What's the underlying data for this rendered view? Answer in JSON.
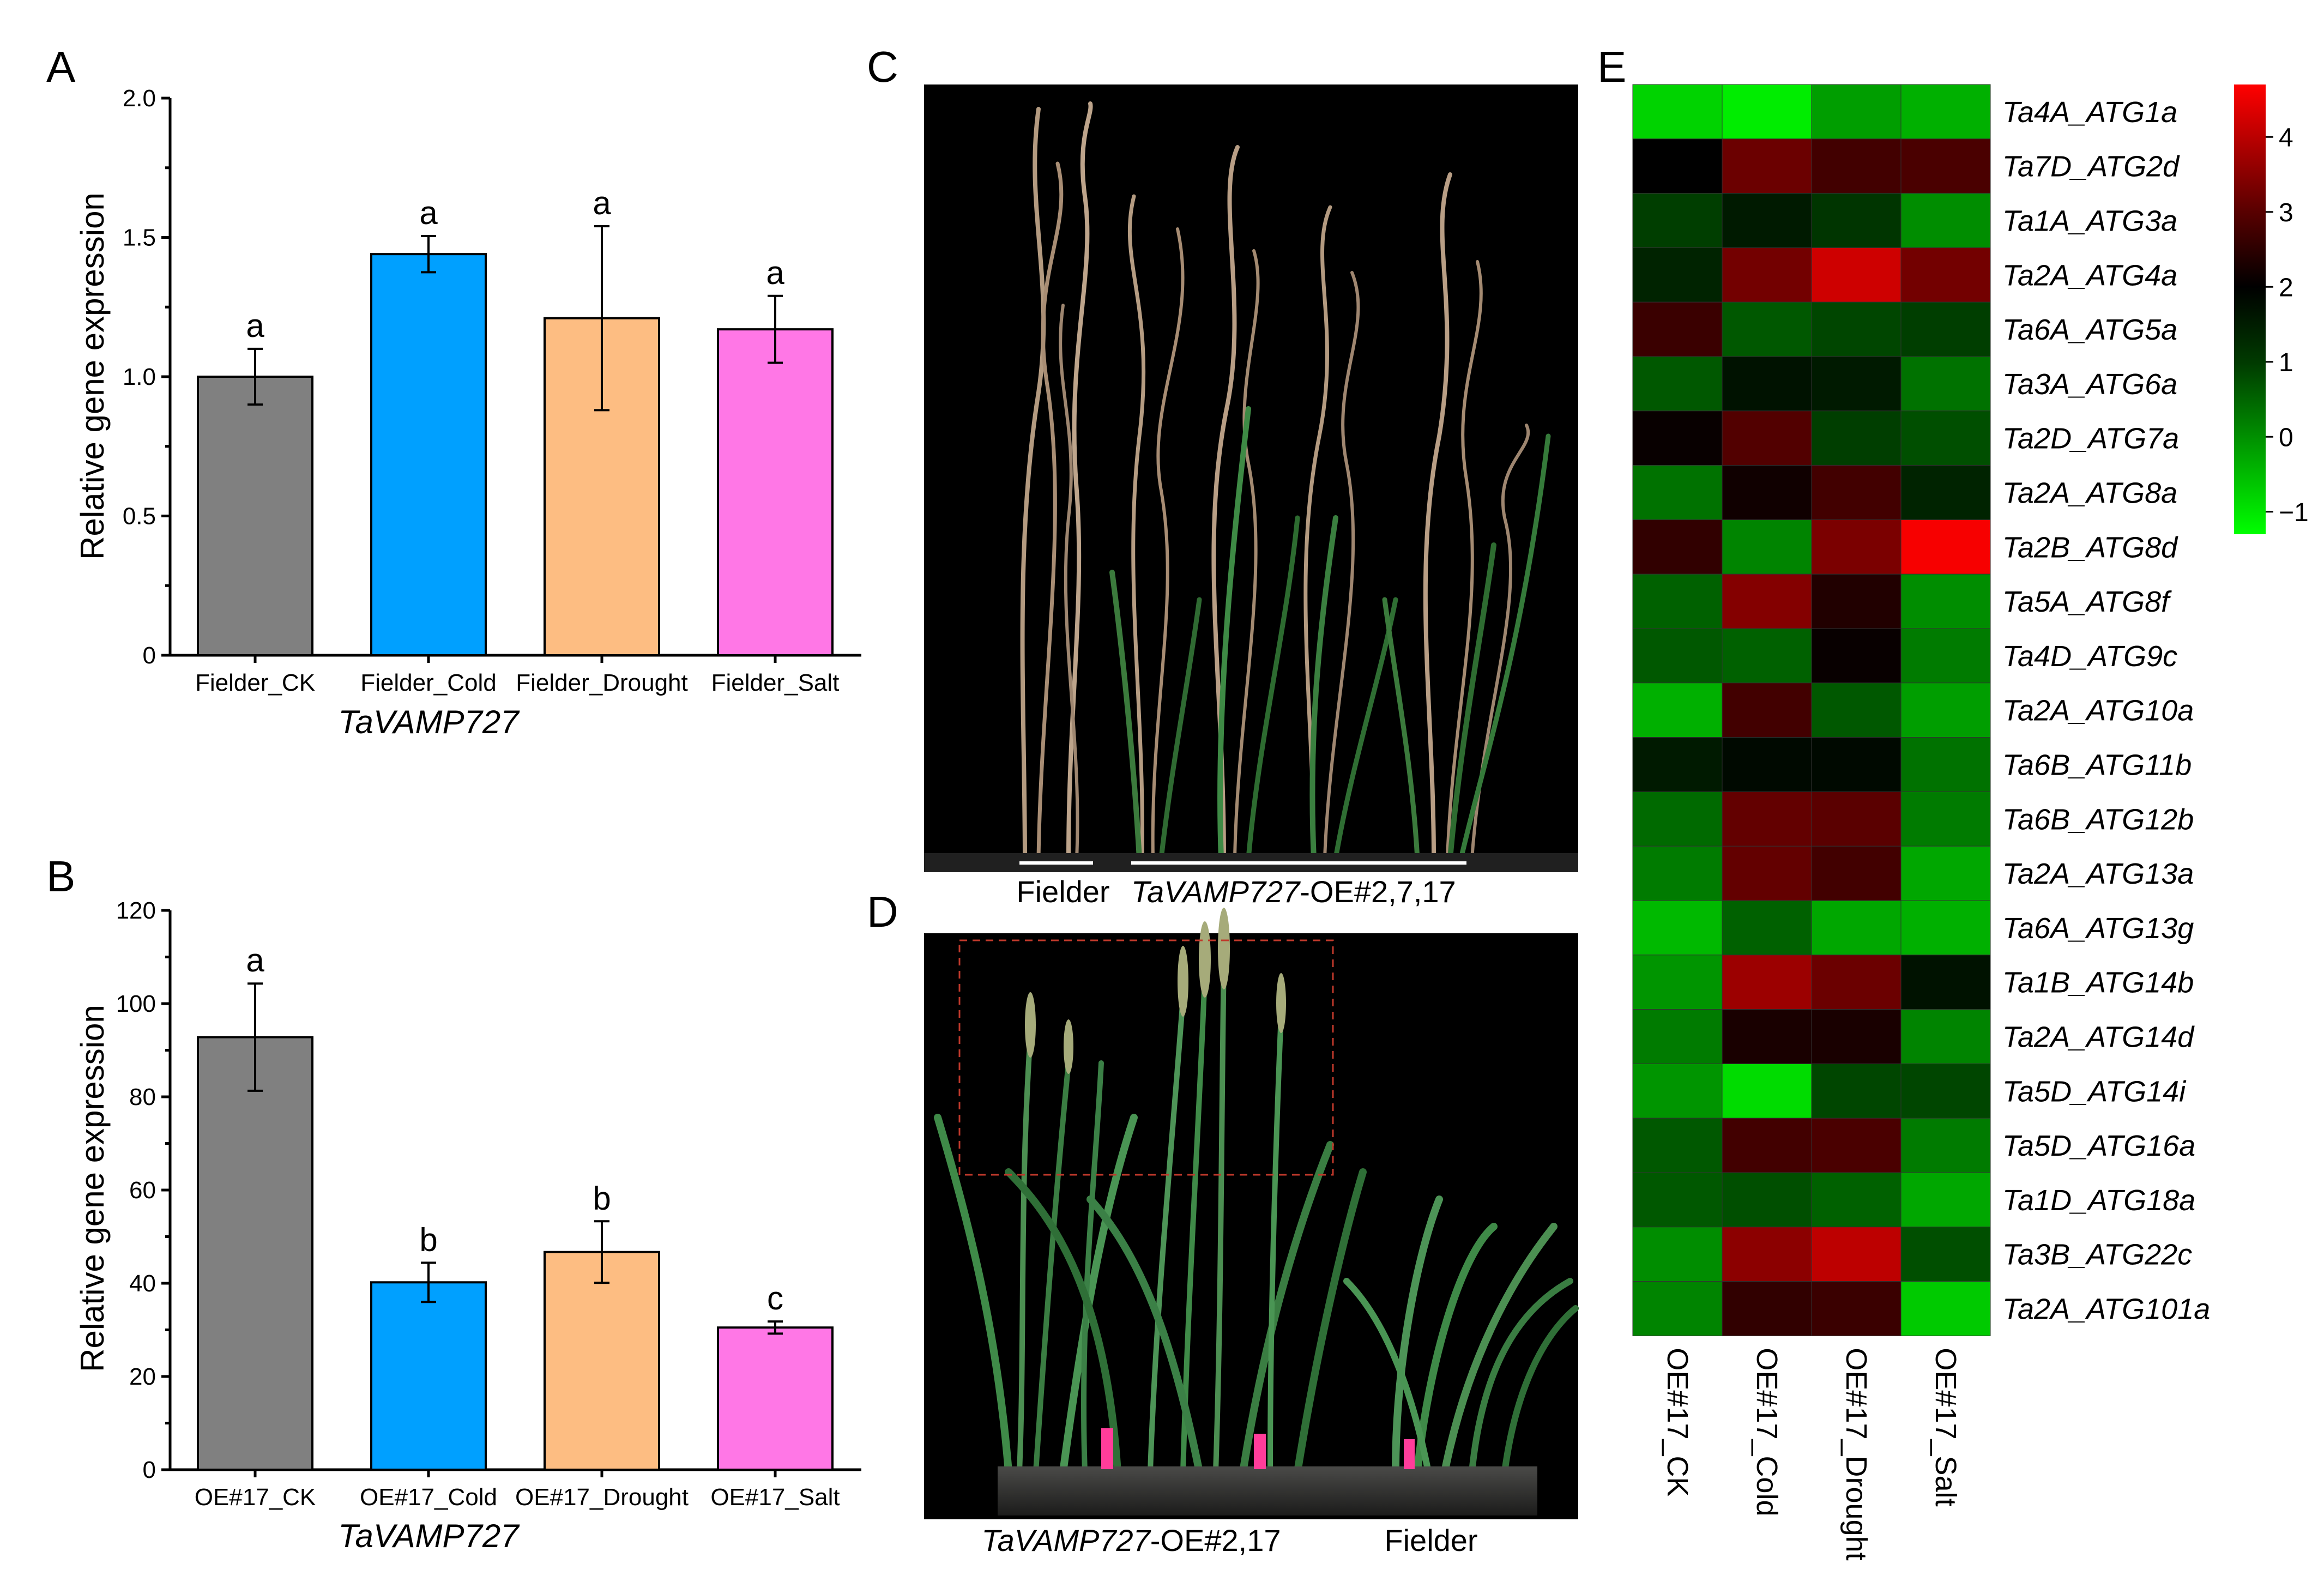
{
  "figure": {
    "panels": [
      "A",
      "B",
      "C",
      "D",
      "E"
    ]
  },
  "chart_data": [
    {
      "id": "A",
      "type": "bar",
      "ylabel": "Relative gene expression",
      "xlabel": "TaVAMP727",
      "ylim": [
        0,
        2.0
      ],
      "yticks": [
        "0",
        "0.5",
        "1.0",
        "1.5",
        "2.0"
      ],
      "categories": [
        "Fielder_CK",
        "Fielder_Cold",
        "Fielder_Drought",
        "Fielder_Salt"
      ],
      "values": [
        1.0,
        1.44,
        1.21,
        1.17
      ],
      "errors": [
        0.1,
        0.065,
        0.33,
        0.12
      ],
      "letters": [
        "a",
        "a",
        "a",
        "a"
      ],
      "colors": [
        "#808080",
        "#00a0ff",
        "#fdbd82",
        "#ff77e6"
      ]
    },
    {
      "id": "B",
      "type": "bar",
      "ylabel": "Relative gene expression",
      "xlabel": "TaVAMP727",
      "ylim": [
        0,
        120
      ],
      "yticks": [
        "0",
        "20",
        "40",
        "60",
        "80",
        "100",
        "120"
      ],
      "categories": [
        "OE#17_CK",
        "OE#17_Cold",
        "OE#17_Drought",
        "OE#17_Salt"
      ],
      "values": [
        92.8,
        40.2,
        46.7,
        30.5
      ],
      "errors": [
        11.5,
        4.2,
        6.6,
        1.3
      ],
      "letters": [
        "a",
        "b",
        "b",
        "c"
      ],
      "colors": [
        "#808080",
        "#00a0ff",
        "#fdbd82",
        "#ff77e6"
      ]
    },
    {
      "id": "E",
      "type": "heatmap",
      "columns": [
        "OE#17_CK",
        "OE#17_Cold",
        "OE#17_Drought",
        "OE#17_Salt"
      ],
      "rows": [
        "Ta4A_ATG1a",
        "Ta7D_ATG2d",
        "Ta1A_ATG3a",
        "Ta2A_ATG4a",
        "Ta6A_ATG5a",
        "Ta3A_ATG6a",
        "Ta2D_ATG7a",
        "Ta2A_ATG8a",
        "Ta2B_ATG8d",
        "Ta5A_ATG8f",
        "Ta4D_ATG9c",
        "Ta2A_ATG10a",
        "Ta6B_ATG11b",
        "Ta6B_ATG12b",
        "Ta2A_ATG13a",
        "Ta6A_ATG13g",
        "Ta1B_ATG14b",
        "Ta2A_ATG14d",
        "Ta5D_ATG14i",
        "Ta5D_ATG16a",
        "Ta1D_ATG18a",
        "Ta3B_ATG22c",
        "Ta2A_ATG101a"
      ],
      "values": [
        [
          -0.8,
          -1.1,
          -0.2,
          -0.4
        ],
        [
          1.6,
          2.9,
          2.4,
          2.5
        ],
        [
          0.9,
          1.3,
          1.0,
          0.0
        ],
        [
          1.2,
          3.0,
          4.1,
          3.0
        ],
        [
          2.3,
          0.6,
          0.8,
          0.9
        ],
        [
          0.6,
          1.4,
          1.3,
          0.3
        ],
        [
          1.7,
          2.6,
          0.9,
          0.7
        ],
        [
          0.3,
          1.8,
          2.4,
          1.2
        ],
        [
          2.2,
          0.1,
          3.1,
          4.6
        ],
        [
          0.5,
          3.2,
          2.0,
          0.0
        ],
        [
          0.6,
          0.5,
          1.7,
          0.2
        ],
        [
          -0.4,
          2.4,
          0.6,
          -0.2
        ],
        [
          1.3,
          1.5,
          1.5,
          0.3
        ],
        [
          0.4,
          2.8,
          2.7,
          0.2
        ],
        [
          0.2,
          2.8,
          2.4,
          -0.3
        ],
        [
          -0.5,
          0.5,
          -0.3,
          -0.4
        ],
        [
          -0.1,
          3.5,
          2.9,
          1.4
        ],
        [
          0.2,
          1.9,
          1.9,
          0.1
        ],
        [
          -0.1,
          -0.9,
          0.8,
          0.8
        ],
        [
          0.6,
          2.4,
          2.5,
          0.2
        ],
        [
          0.6,
          0.7,
          0.5,
          -0.3
        ],
        [
          0.0,
          3.3,
          3.9,
          0.7
        ],
        [
          0.1,
          2.2,
          2.3,
          -0.7
        ]
      ],
      "colorbar": {
        "ticks": [
          "4",
          "3",
          "2",
          "1",
          "0",
          "−1"
        ],
        "range": [
          -1.3,
          4.7
        ],
        "colors": [
          "#00ff00",
          "#000000",
          "#ff0000"
        ]
      }
    }
  ],
  "photos": {
    "C": {
      "caption_left": "Fielder",
      "caption_right_italic": "TaVAMP727",
      "caption_right_rest": "-OE#2,7,17"
    },
    "D": {
      "caption_left_italic": "TaVAMP727",
      "caption_left_rest": "-OE#2,17",
      "caption_right": "Fielder"
    }
  }
}
